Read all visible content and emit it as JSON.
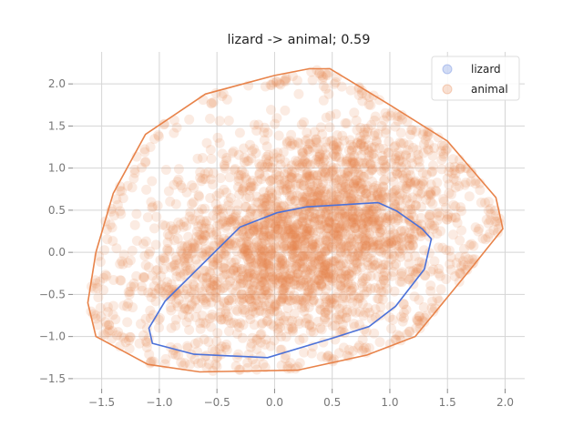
{
  "chart_data": {
    "type": "scatter",
    "title": "lizard -> animal; 0.59",
    "xlabel": "",
    "ylabel": "",
    "xlim": [
      -1.75,
      2.17
    ],
    "ylim": [
      -1.62,
      2.38
    ],
    "xticks": [
      -1.5,
      -1.0,
      -0.5,
      0.0,
      0.5,
      1.0,
      1.5,
      2.0
    ],
    "xtick_labels": [
      "−1.5",
      "−1.0",
      "−0.5",
      "0.0",
      "0.5",
      "1.0",
      "1.5",
      "2.0"
    ],
    "yticks": [
      -1.5,
      -1.0,
      -0.5,
      0.0,
      0.5,
      1.0,
      1.5,
      2.0
    ],
    "ytick_labels": [
      "−1.5",
      "−1.0",
      "−0.5",
      "0.0",
      "0.5",
      "1.0",
      "1.5",
      "2.0"
    ],
    "grid": true,
    "legend_position": "top-right",
    "series": [
      {
        "name": "lizard",
        "color": "#4c72d9",
        "hull": [
          [
            0.9,
            0.59
          ],
          [
            1.06,
            0.49
          ],
          [
            1.28,
            0.28
          ],
          [
            1.36,
            0.16
          ],
          [
            1.3,
            -0.2
          ],
          [
            1.05,
            -0.64
          ],
          [
            0.82,
            -0.88
          ],
          [
            0.5,
            -1.02
          ],
          [
            -0.06,
            -1.25
          ],
          [
            -0.7,
            -1.21
          ],
          [
            -1.06,
            -1.08
          ],
          [
            -1.09,
            -0.9
          ],
          [
            -0.95,
            -0.58
          ],
          [
            -0.3,
            0.3
          ],
          [
            0.02,
            0.47
          ],
          [
            0.28,
            0.54
          ],
          [
            0.9,
            0.59
          ]
        ]
      },
      {
        "name": "animal",
        "color": "#e8834a",
        "hull": [
          [
            0.3,
            2.18
          ],
          [
            0.48,
            2.18
          ],
          [
            1.0,
            1.75
          ],
          [
            1.5,
            1.32
          ],
          [
            1.92,
            0.65
          ],
          [
            1.98,
            0.28
          ],
          [
            1.7,
            -0.2
          ],
          [
            1.4,
            -0.7
          ],
          [
            1.22,
            -1.0
          ],
          [
            0.8,
            -1.22
          ],
          [
            0.2,
            -1.4
          ],
          [
            -0.65,
            -1.42
          ],
          [
            -1.1,
            -1.33
          ],
          [
            -1.55,
            -1.0
          ],
          [
            -1.62,
            -0.6
          ],
          [
            -1.55,
            0.0
          ],
          [
            -1.4,
            0.7
          ],
          [
            -1.12,
            1.4
          ],
          [
            -0.6,
            1.88
          ],
          [
            0.0,
            2.1
          ],
          [
            0.3,
            2.18
          ]
        ],
        "density_center": [
          0.3,
          0.2
        ],
        "density_spread": [
          0.75,
          0.72
        ],
        "density_correlation": 0.35
      }
    ]
  }
}
